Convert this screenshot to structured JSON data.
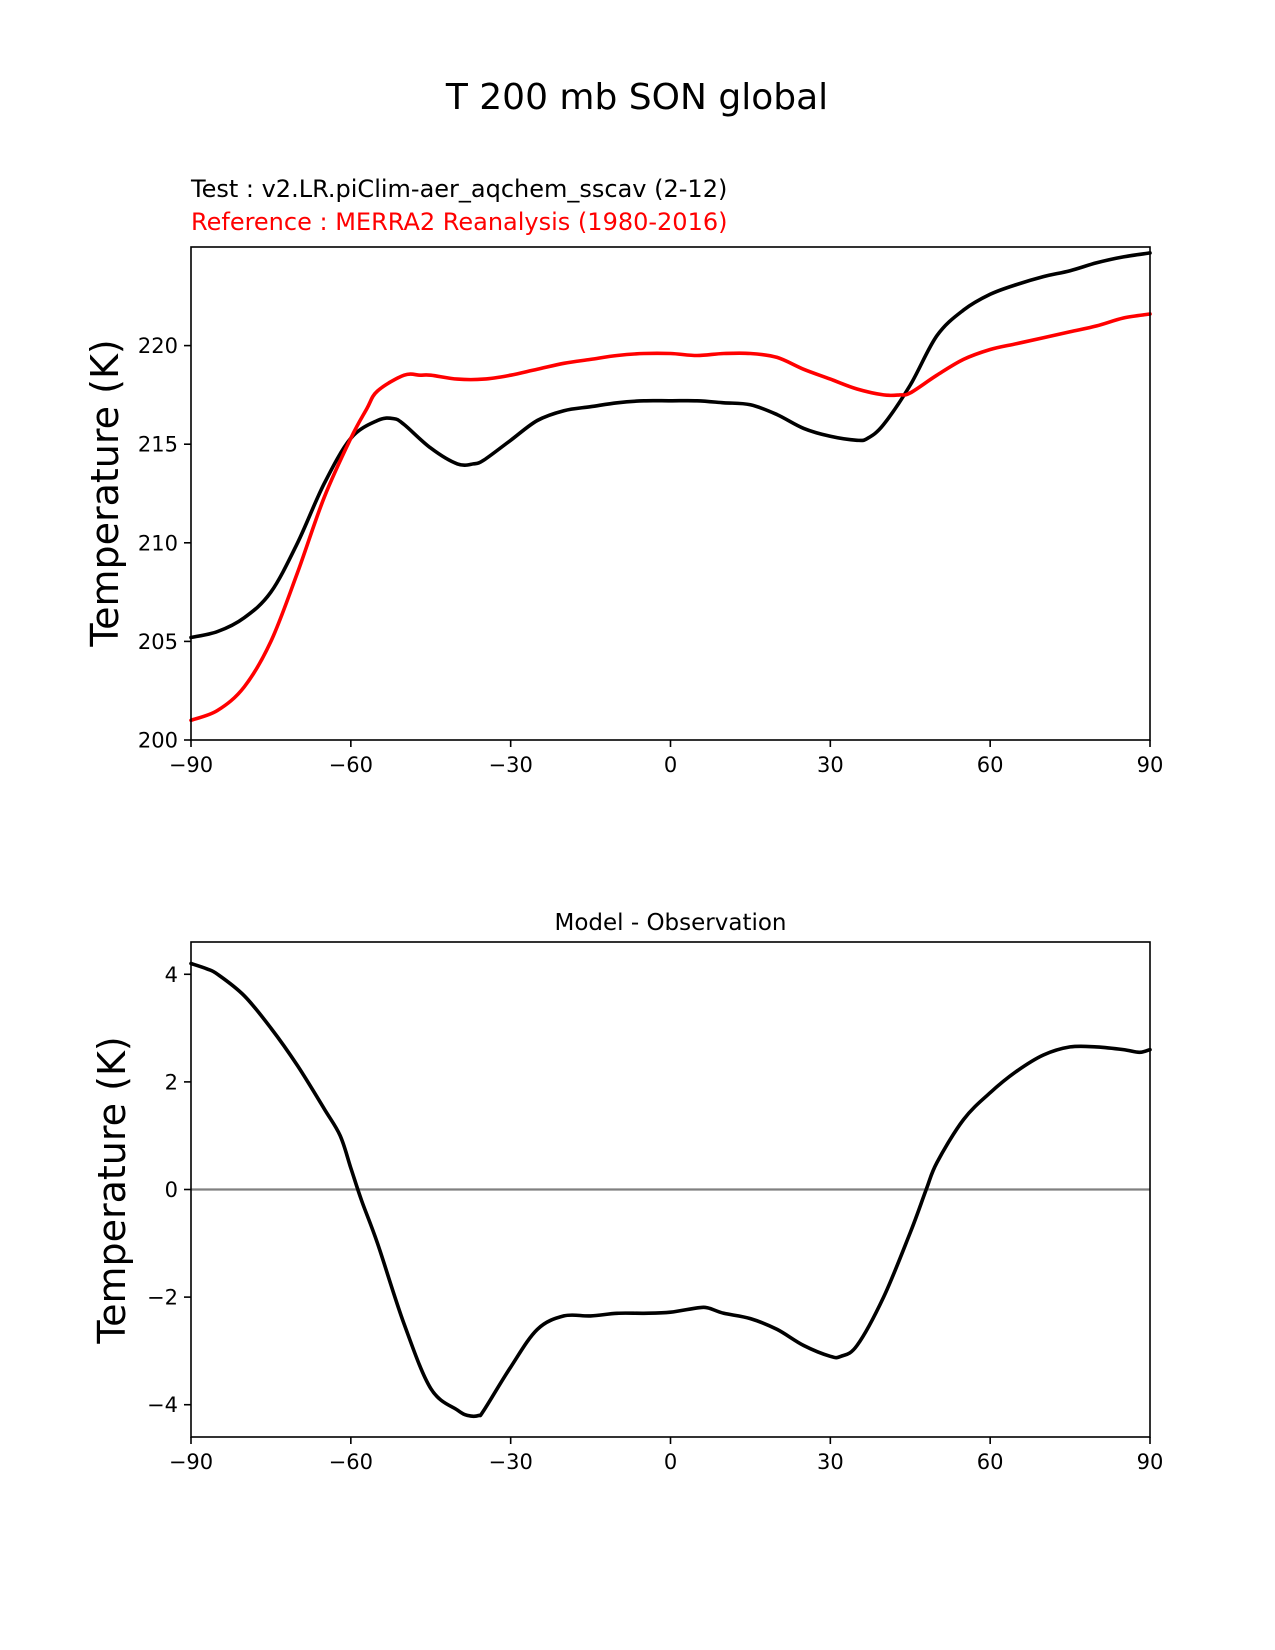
{
  "figure": {
    "title": "T 200 mb SON global",
    "test_label": "Test : v2.LR.piClim-aer_aqchem_sscav (2-12)",
    "reference_label": "Reference : MERRA2 Reanalysis (1980-2016)",
    "colors": {
      "test": "#000000",
      "reference": "#ff0000",
      "zero_line": "#808080"
    }
  },
  "chart_data": [
    {
      "type": "line",
      "title": "",
      "xlabel": "",
      "ylabel": "Temperature (K)",
      "xlim": [
        -90,
        90
      ],
      "ylim": [
        200,
        225
      ],
      "xticks": [
        -90,
        -60,
        -30,
        0,
        30,
        60,
        90
      ],
      "xtick_labels": [
        "−90",
        "−60",
        "−30",
        "0",
        "30",
        "60",
        "90"
      ],
      "yticks": [
        200,
        205,
        210,
        215,
        220
      ],
      "ytick_labels": [
        "200",
        "205",
        "210",
        "215",
        "220"
      ],
      "series": [
        {
          "name": "Test",
          "color": "#000000",
          "x": [
            -90,
            -85,
            -80,
            -75,
            -70,
            -65,
            -60,
            -55,
            -52,
            -50,
            -45,
            -40,
            -37,
            -35,
            -30,
            -25,
            -20,
            -15,
            -10,
            -5,
            0,
            5,
            10,
            15,
            20,
            25,
            30,
            35,
            37,
            40,
            45,
            50,
            55,
            60,
            65,
            70,
            75,
            80,
            85,
            90
          ],
          "y": [
            205.2,
            205.5,
            206.2,
            207.5,
            210.0,
            213.0,
            215.3,
            216.2,
            216.3,
            216.0,
            214.8,
            214.0,
            214.0,
            214.2,
            215.2,
            216.2,
            216.7,
            216.9,
            217.1,
            217.2,
            217.2,
            217.2,
            217.1,
            217.0,
            216.5,
            215.8,
            215.4,
            215.2,
            215.3,
            216.0,
            218.0,
            220.5,
            221.8,
            222.6,
            223.1,
            223.5,
            223.8,
            224.2,
            224.5,
            224.7
          ]
        },
        {
          "name": "Reference",
          "color": "#ff0000",
          "x": [
            -90,
            -85,
            -80,
            -75,
            -70,
            -65,
            -60,
            -57,
            -55,
            -50,
            -47,
            -45,
            -40,
            -35,
            -30,
            -25,
            -20,
            -15,
            -10,
            -5,
            0,
            5,
            10,
            15,
            20,
            25,
            30,
            35,
            40,
            43,
            45,
            50,
            55,
            60,
            65,
            70,
            75,
            80,
            85,
            90
          ],
          "y": [
            201.0,
            201.5,
            202.7,
            205.0,
            208.5,
            212.3,
            215.3,
            216.8,
            217.7,
            218.5,
            218.5,
            218.5,
            218.3,
            218.3,
            218.5,
            218.8,
            219.1,
            219.3,
            219.5,
            219.6,
            219.6,
            219.5,
            219.6,
            219.6,
            219.4,
            218.8,
            218.3,
            217.8,
            217.5,
            217.5,
            217.6,
            218.5,
            219.3,
            219.8,
            220.1,
            220.4,
            220.7,
            221.0,
            221.4,
            221.6
          ]
        }
      ]
    },
    {
      "type": "line",
      "title": "Model - Observation",
      "xlabel": "",
      "ylabel": "Temperature (K)",
      "xlim": [
        -90,
        90
      ],
      "ylim": [
        -4.6,
        4.6
      ],
      "xticks": [
        -90,
        -60,
        -30,
        0,
        30,
        60,
        90
      ],
      "xtick_labels": [
        "−90",
        "−60",
        "−30",
        "0",
        "30",
        "60",
        "90"
      ],
      "yticks": [
        -4,
        -2,
        0,
        2,
        4
      ],
      "ytick_labels": [
        "−4",
        "−2",
        "0",
        "2",
        "4"
      ],
      "zero_line": 0,
      "series": [
        {
          "name": "Model - Observation",
          "color": "#000000",
          "x": [
            -90,
            -87,
            -85,
            -80,
            -75,
            -70,
            -65,
            -62,
            -60,
            -58,
            -55,
            -50,
            -45,
            -40,
            -38,
            -36,
            -35,
            -30,
            -25,
            -20,
            -15,
            -10,
            -5,
            0,
            5,
            7,
            10,
            15,
            20,
            25,
            30,
            32,
            35,
            40,
            45,
            48,
            50,
            55,
            60,
            65,
            70,
            75,
            80,
            85,
            88,
            90
          ],
          "y": [
            4.2,
            4.1,
            4.0,
            3.6,
            3.0,
            2.3,
            1.5,
            1.0,
            0.4,
            -0.2,
            -1.0,
            -2.5,
            -3.7,
            -4.1,
            -4.2,
            -4.2,
            -4.1,
            -3.3,
            -2.6,
            -2.35,
            -2.35,
            -2.3,
            -2.3,
            -2.28,
            -2.2,
            -2.2,
            -2.3,
            -2.4,
            -2.6,
            -2.9,
            -3.1,
            -3.1,
            -2.9,
            -2.0,
            -0.8,
            0.0,
            0.5,
            1.3,
            1.8,
            2.2,
            2.5,
            2.65,
            2.65,
            2.6,
            2.55,
            2.6
          ]
        }
      ]
    }
  ]
}
